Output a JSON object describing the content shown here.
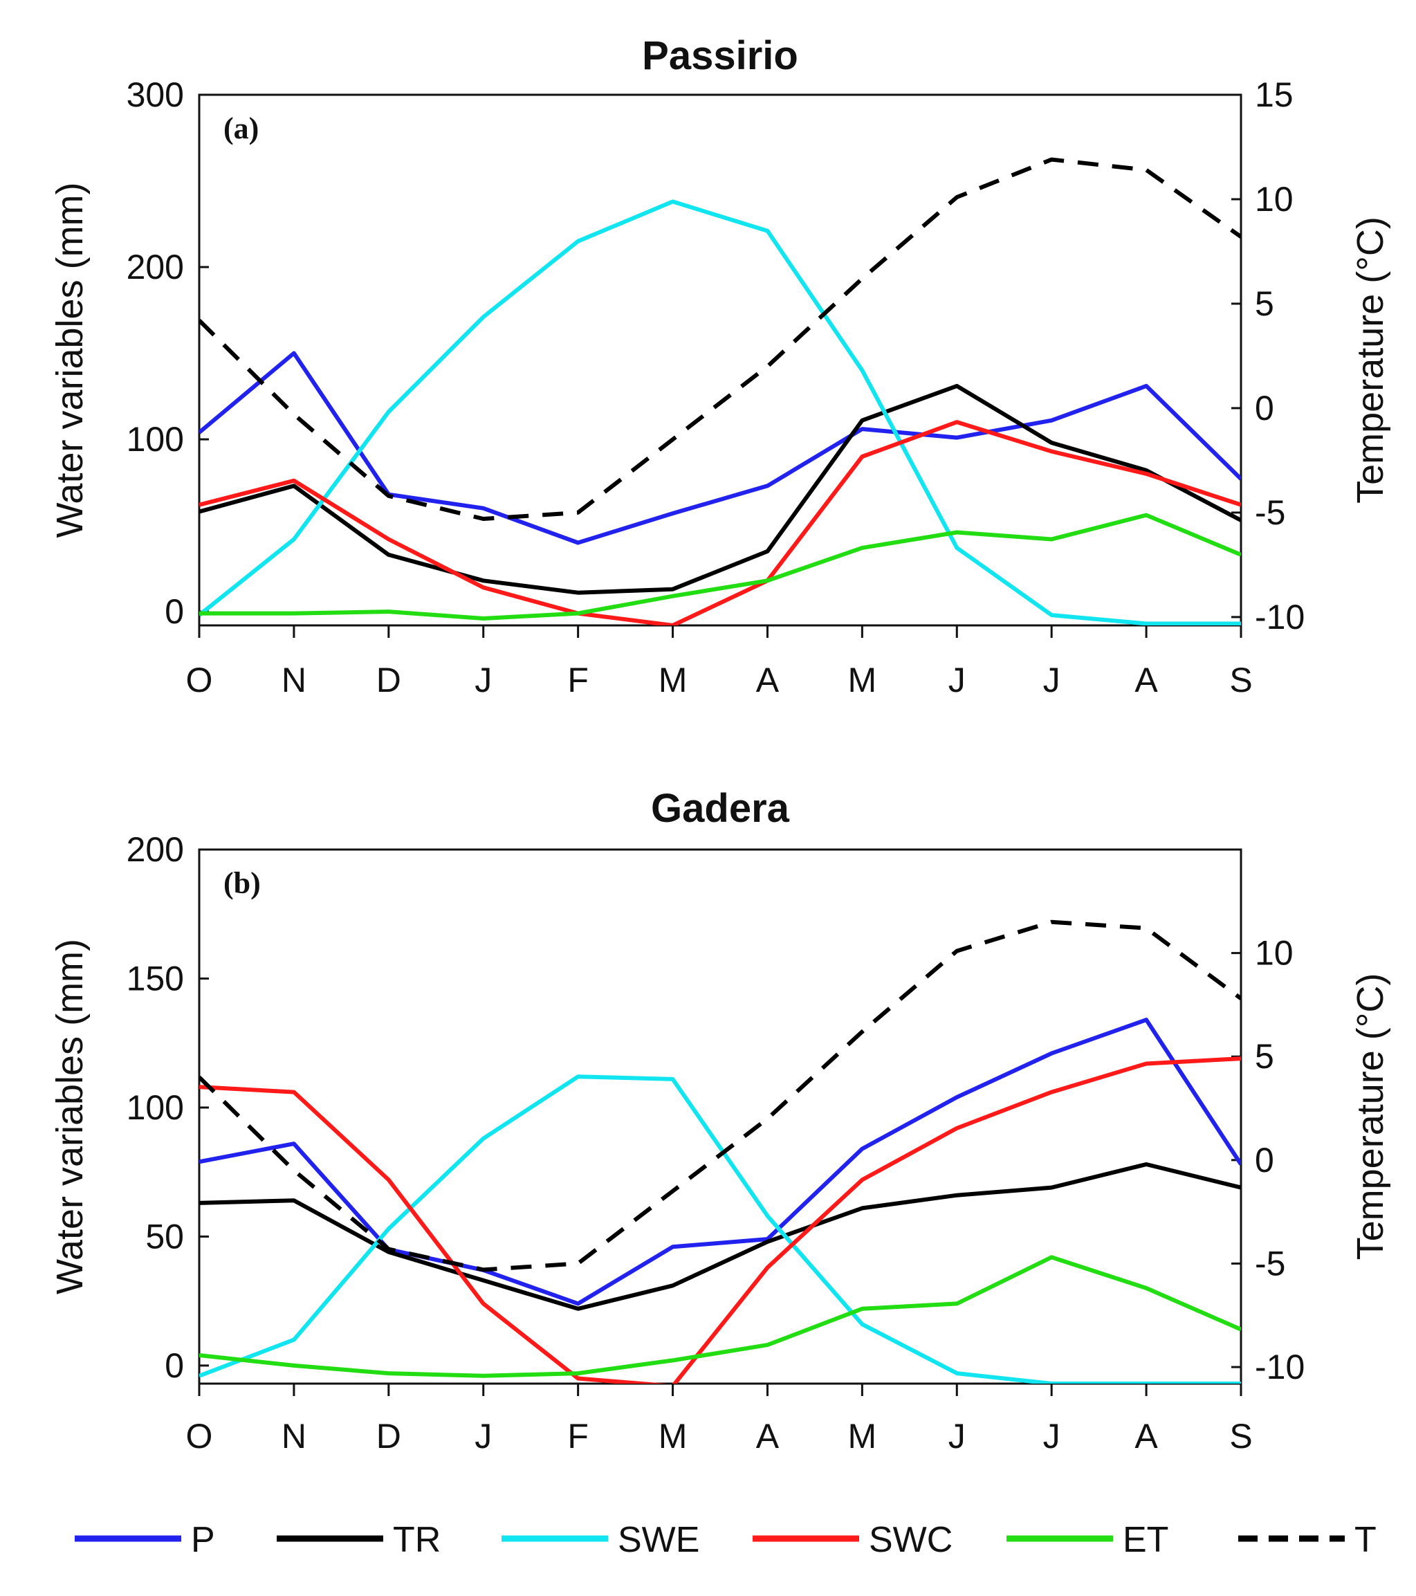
{
  "chart_data": [
    {
      "type": "line",
      "title": "Passirio",
      "panel_tag": "(a)",
      "categories": [
        "O",
        "N",
        "D",
        "J",
        "F",
        "M",
        "A",
        "M",
        "J",
        "J",
        "A",
        "S"
      ],
      "ylabel": "Water variables (mm)",
      "ylim": [
        -8,
        300
      ],
      "yticks": [
        0,
        100,
        200,
        300
      ],
      "y2label": "Temperature (°C)",
      "y2lim": [
        -10.4,
        15
      ],
      "y2ticks": [
        -10,
        -5,
        0,
        5,
        10,
        15
      ],
      "grid": false,
      "series": [
        {
          "name": "P",
          "axis": "left",
          "color": "#2222ee",
          "dash": false,
          "values": [
            104,
            150,
            68,
            60,
            40,
            57,
            73,
            106,
            101,
            111,
            131,
            77
          ]
        },
        {
          "name": "TR",
          "axis": "left",
          "color": "#000000",
          "dash": false,
          "values": [
            58,
            73,
            33,
            18,
            11,
            13,
            35,
            111,
            131,
            98,
            82,
            53
          ]
        },
        {
          "name": "SWE",
          "axis": "left",
          "color": "#11e6f0",
          "dash": false,
          "values": [
            -2,
            42,
            116,
            171,
            215,
            238,
            221,
            140,
            37,
            -2,
            -7,
            -7
          ]
        },
        {
          "name": "SWC",
          "axis": "left",
          "color": "#ff1a1a",
          "dash": false,
          "values": [
            62,
            76,
            42,
            14,
            -1,
            -8,
            18,
            90,
            110,
            93,
            80,
            62
          ]
        },
        {
          "name": "ET",
          "axis": "left",
          "color": "#22dd11",
          "dash": false,
          "values": [
            -1,
            -1,
            0,
            -4,
            -1,
            9,
            18,
            37,
            46,
            42,
            56,
            33
          ]
        },
        {
          "name": "T",
          "axis": "right",
          "color": "#000000",
          "dash": true,
          "values": [
            4.2,
            -0.3,
            -4.2,
            -5.3,
            -5.0,
            -1.5,
            2.0,
            6.2,
            10.1,
            11.9,
            11.4,
            8.2
          ]
        }
      ]
    },
    {
      "type": "line",
      "title": "Gadera",
      "panel_tag": "(b)",
      "categories": [
        "O",
        "N",
        "D",
        "J",
        "F",
        "M",
        "A",
        "M",
        "J",
        "J",
        "A",
        "S"
      ],
      "ylabel": "Water variables (mm)",
      "ylim": [
        -7,
        200
      ],
      "yticks": [
        0,
        50,
        100,
        150,
        200
      ],
      "y2label": "Temperature (°C)",
      "y2lim": [
        -10.8,
        15
      ],
      "y2ticks": [
        -10,
        -5,
        0,
        5,
        10
      ],
      "grid": false,
      "series": [
        {
          "name": "P",
          "axis": "left",
          "color": "#2222ee",
          "dash": false,
          "values": [
            79,
            86,
            45,
            37,
            24,
            46,
            49,
            84,
            104,
            121,
            134,
            78
          ]
        },
        {
          "name": "TR",
          "axis": "left",
          "color": "#000000",
          "dash": false,
          "values": [
            63,
            64,
            44,
            33,
            22,
            31,
            48,
            61,
            66,
            69,
            78,
            69
          ]
        },
        {
          "name": "SWE",
          "axis": "left",
          "color": "#11e6f0",
          "dash": false,
          "values": [
            -4,
            10,
            53,
            88,
            112,
            111,
            58,
            16,
            -3,
            -7,
            -7,
            -7
          ]
        },
        {
          "name": "SWC",
          "axis": "left",
          "color": "#ff1a1a",
          "dash": false,
          "values": [
            108,
            106,
            72,
            24,
            -5,
            -8,
            38,
            72,
            92,
            106,
            117,
            119
          ]
        },
        {
          "name": "ET",
          "axis": "left",
          "color": "#22dd11",
          "dash": false,
          "values": [
            4,
            0,
            -3,
            -4,
            -3,
            2,
            8,
            22,
            24,
            42,
            30,
            14
          ]
        },
        {
          "name": "T",
          "axis": "right",
          "color": "#000000",
          "dash": true,
          "values": [
            4.0,
            -0.5,
            -4.3,
            -5.3,
            -5.0,
            -1.5,
            2.0,
            6.2,
            10.1,
            11.5,
            11.2,
            7.8
          ]
        }
      ]
    }
  ],
  "legend": [
    {
      "label": "P",
      "color": "#2222ee",
      "dash": false
    },
    {
      "label": "TR",
      "color": "#000000",
      "dash": false
    },
    {
      "label": "SWE",
      "color": "#11e6f0",
      "dash": false
    },
    {
      "label": "SWC",
      "color": "#ff1a1a",
      "dash": false
    },
    {
      "label": "ET",
      "color": "#22dd11",
      "dash": false
    },
    {
      "label": "T",
      "color": "#000000",
      "dash": true
    }
  ]
}
